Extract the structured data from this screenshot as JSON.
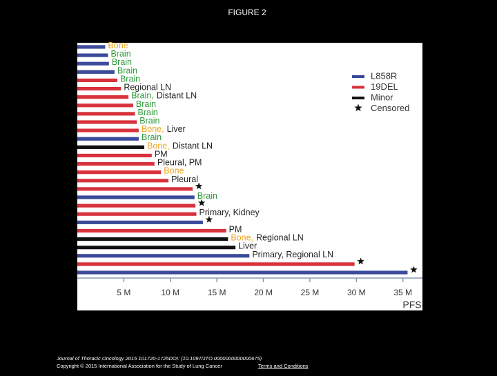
{
  "page_title": "FIGURE 2",
  "chart_data": {
    "type": "bar",
    "orientation": "horizontal",
    "x_label": "PFS",
    "xlim": [
      0,
      37.1
    ],
    "xticks": [
      {
        "value": 5,
        "label": "5 M"
      },
      {
        "value": 10,
        "label": "10 M"
      },
      {
        "value": 15,
        "label": "15 M"
      },
      {
        "value": 20,
        "label": "20 M"
      },
      {
        "value": 25,
        "label": "25 M"
      },
      {
        "value": 30,
        "label": "30 M"
      },
      {
        "value": 35,
        "label": "35 M"
      }
    ],
    "series": [
      {
        "name": "L858R",
        "color": "#3b4a9a",
        "values": [
          3.0,
          3.3,
          3.4,
          4.0,
          null,
          null,
          null,
          null,
          null,
          null,
          null,
          6.6,
          null,
          null,
          null,
          null,
          null,
          null,
          12.6,
          null,
          null,
          13.5,
          null,
          null,
          null,
          18.5,
          null,
          35.5
        ]
      },
      {
        "name": "19DEL",
        "color": "#d8323c",
        "values": [
          null,
          null,
          null,
          null,
          4.3,
          4.7,
          5.5,
          6.0,
          6.2,
          6.4,
          6.6,
          null,
          null,
          8.0,
          8.3,
          9.0,
          9.8,
          12.4,
          null,
          12.7,
          12.8,
          null,
          16.0,
          null,
          null,
          null,
          29.8,
          null
        ]
      },
      {
        "name": "Minor",
        "color": "#111111",
        "values": [
          null,
          null,
          null,
          null,
          null,
          null,
          null,
          null,
          null,
          null,
          null,
          null,
          7.2,
          null,
          null,
          null,
          null,
          null,
          null,
          null,
          null,
          null,
          null,
          16.2,
          17.0,
          null,
          null,
          null
        ]
      }
    ],
    "censored_label": "Censored",
    "censored": [
      false,
      false,
      false,
      false,
      false,
      false,
      false,
      false,
      false,
      false,
      false,
      false,
      false,
      false,
      false,
      false,
      false,
      true,
      false,
      true,
      false,
      true,
      false,
      false,
      false,
      false,
      true,
      true
    ],
    "site_labels": [
      [
        {
          "text": "Bone",
          "color": "#f0a51c"
        }
      ],
      [
        {
          "text": "Brain",
          "color": "#2e9a3a"
        }
      ],
      [
        {
          "text": "Brain",
          "color": "#2e9a3a"
        }
      ],
      [
        {
          "text": "Brain",
          "color": "#2e9a3a"
        }
      ],
      [
        {
          "text": "Brain",
          "color": "#2e9a3a"
        }
      ],
      [
        {
          "text": "Regional LN",
          "color": "#222222"
        }
      ],
      [
        {
          "text": "Brain,",
          "color": "#2e9a3a"
        },
        {
          "text": "Distant LN",
          "color": "#222222"
        }
      ],
      [
        {
          "text": "Brain",
          "color": "#2e9a3a"
        }
      ],
      [
        {
          "text": "Brain",
          "color": "#2e9a3a"
        }
      ],
      [
        {
          "text": "Brain",
          "color": "#2e9a3a"
        }
      ],
      [
        {
          "text": "Bone,",
          "color": "#f0a51c"
        },
        {
          "text": "Liver",
          "color": "#222222"
        }
      ],
      [
        {
          "text": "Brain",
          "color": "#2e9a3a"
        }
      ],
      [
        {
          "text": "Bone,",
          "color": "#f0a51c"
        },
        {
          "text": "Distant LN",
          "color": "#222222"
        }
      ],
      [
        {
          "text": "PM",
          "color": "#222222"
        }
      ],
      [
        {
          "text": "Pleural, PM",
          "color": "#222222"
        }
      ],
      [
        {
          "text": "Bone",
          "color": "#f0a51c"
        }
      ],
      [
        {
          "text": "Pleural",
          "color": "#222222"
        }
      ],
      null,
      [
        {
          "text": "Brain",
          "color": "#2e9a3a"
        }
      ],
      null,
      [
        {
          "text": "Primary, Kidney",
          "color": "#222222"
        }
      ],
      null,
      [
        {
          "text": "PM",
          "color": "#222222"
        }
      ],
      [
        {
          "text": "Bone,",
          "color": "#f0a51c"
        },
        {
          "text": "Regional LN",
          "color": "#222222"
        }
      ],
      [
        {
          "text": "Liver",
          "color": "#222222"
        }
      ],
      [
        {
          "text": "Primary, Regional LN",
          "color": "#222222"
        }
      ],
      null,
      null
    ]
  },
  "footer": {
    "citation": "Journal of Thoracic Oncology 2015 101720-1725DOI: (10.1097/JTO.0000000000000675)",
    "copyright": "Copyright © 2015 International Association for the Study of Lung Cancer",
    "link": "Terms and Conditions"
  }
}
